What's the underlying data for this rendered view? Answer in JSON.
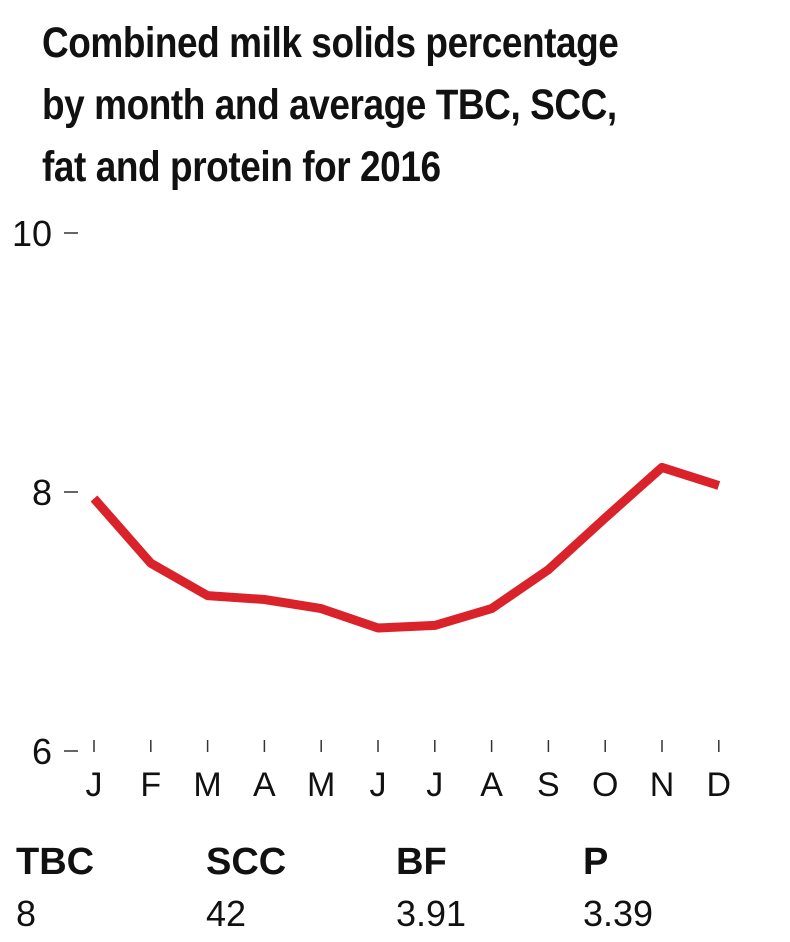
{
  "chart_data": {
    "type": "line",
    "title_lines": [
      "Combined milk solids percentage",
      "by month and average TBC, SCC,",
      "fat and protein for 2016"
    ],
    "categories": [
      "J",
      "F",
      "M",
      "A",
      "M",
      "J",
      "J",
      "A",
      "S",
      "O",
      "N",
      "D"
    ],
    "series": [
      {
        "values": [
          7.95,
          7.45,
          7.2,
          7.17,
          7.1,
          6.95,
          6.97,
          7.1,
          7.4,
          7.8,
          8.19,
          8.05
        ]
      }
    ],
    "ylim": [
      6,
      10
    ],
    "yticks": [
      6,
      8,
      10
    ],
    "xlabel": "",
    "ylabel": "",
    "grid": false,
    "line_color": "#d9222a"
  },
  "stats": [
    {
      "label": "TBC",
      "value": "8"
    },
    {
      "label": "SCC",
      "value": "42"
    },
    {
      "label": "BF",
      "value": "3.91"
    },
    {
      "label": "P",
      "value": "3.39"
    }
  ]
}
